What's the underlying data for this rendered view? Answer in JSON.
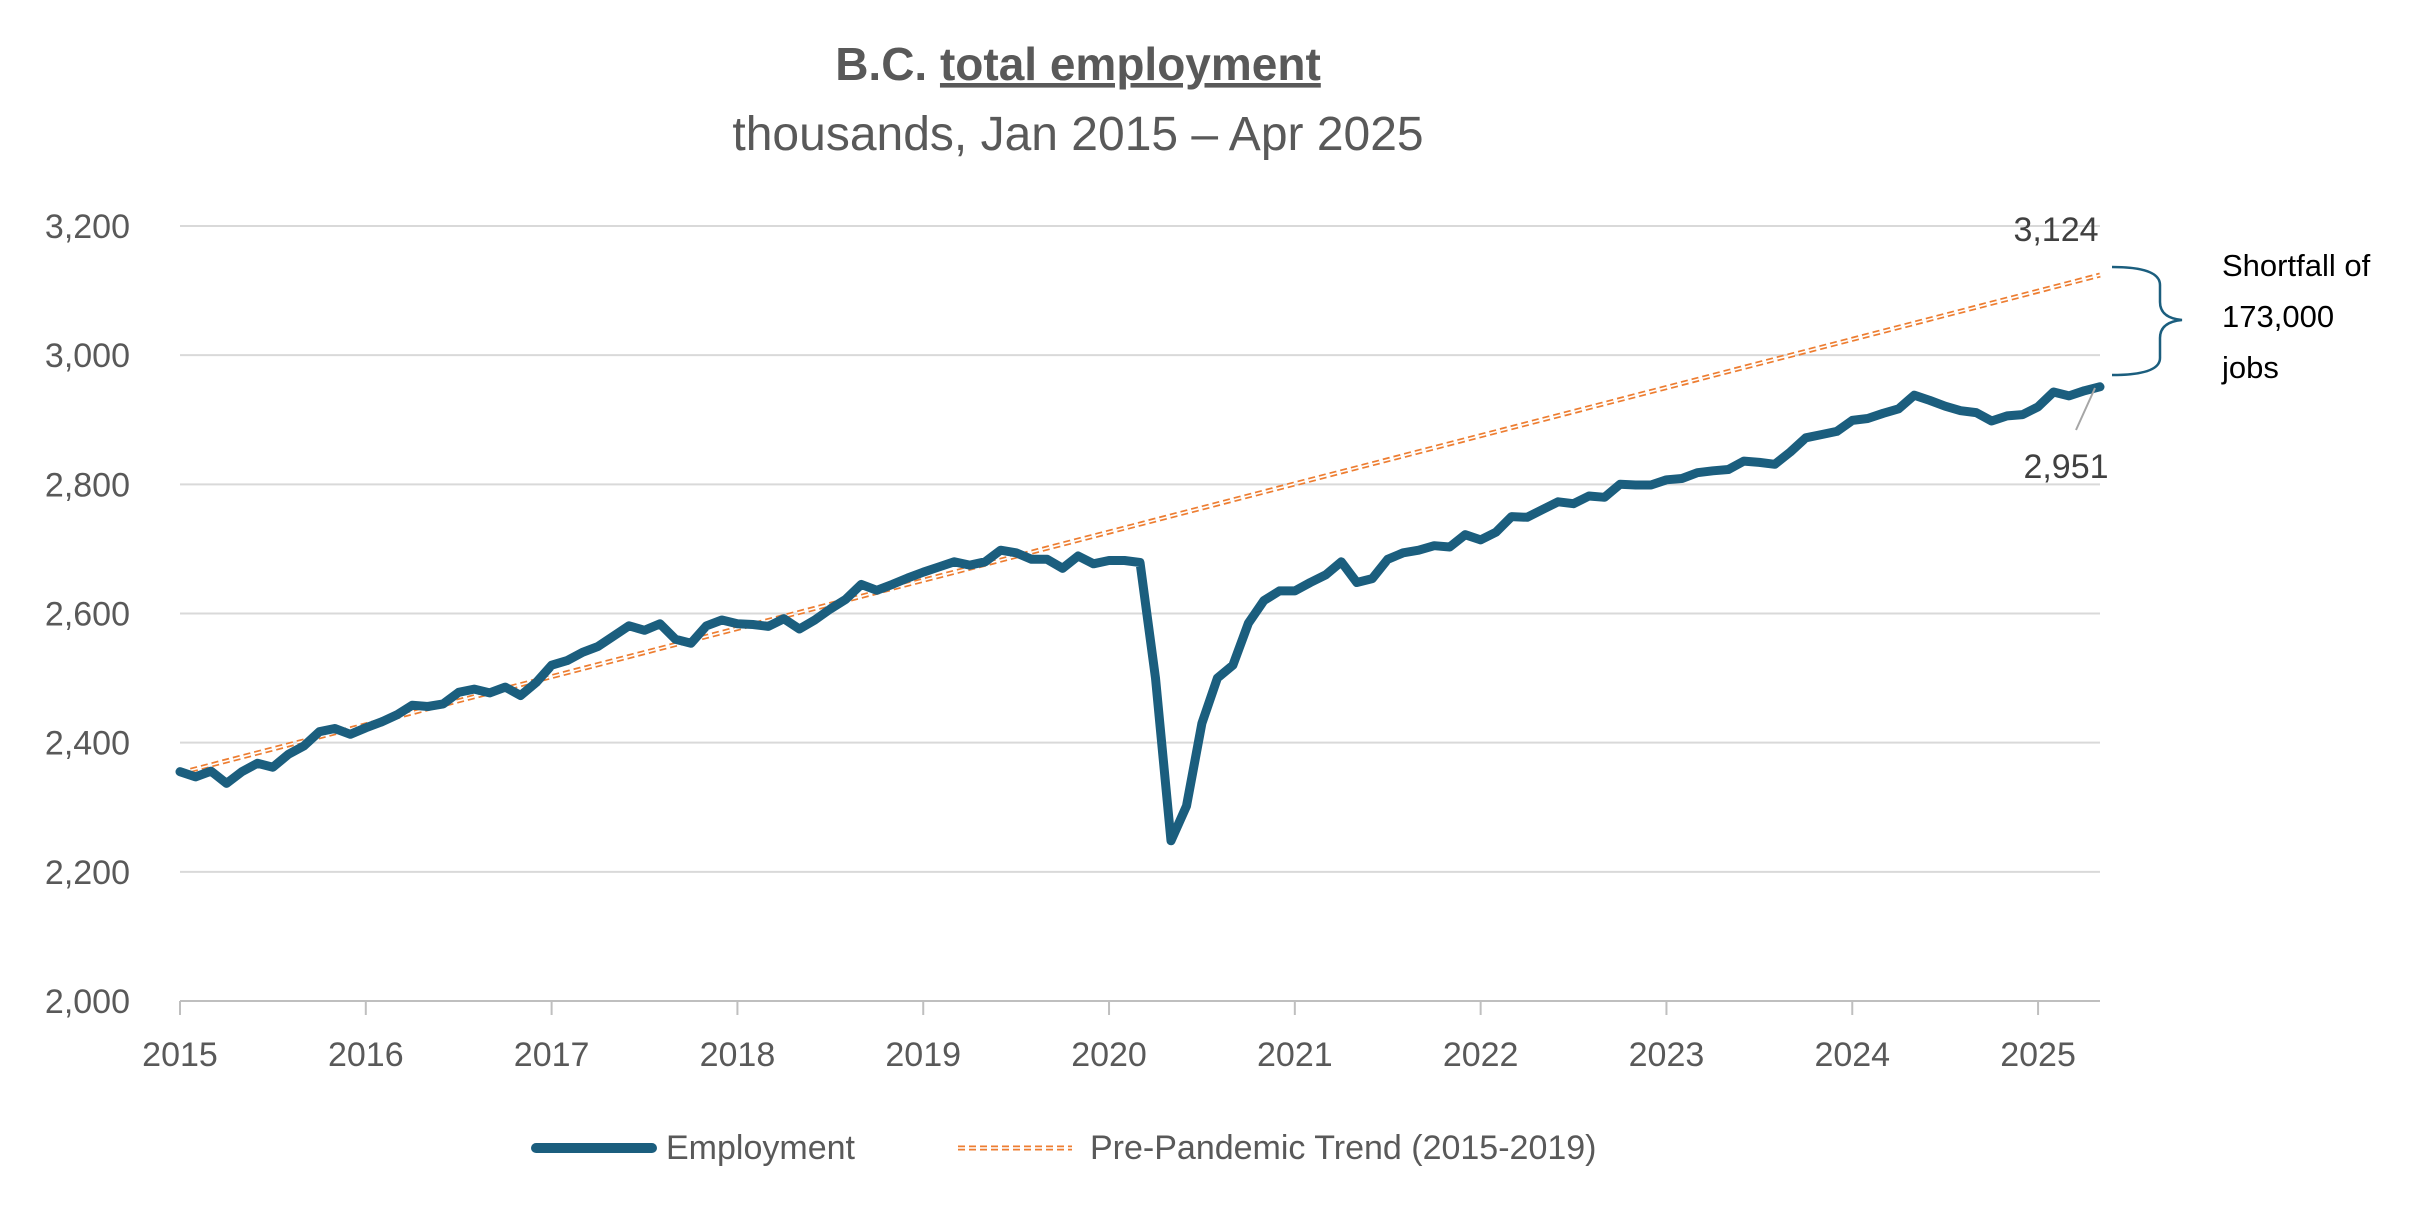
{
  "chart_data": {
    "type": "line",
    "title": "B.C. total employment",
    "title_prefix": "B.C. ",
    "title_underlined": "total employment",
    "subtitle": "thousands, Jan 2015 – Apr 2025",
    "xlabel": "",
    "ylabel": "",
    "ylim": [
      2000,
      3200
    ],
    "y_ticks": [
      "2,000",
      "2,200",
      "2,400",
      "2,600",
      "2,800",
      "3,000",
      "3,200"
    ],
    "y_tick_values": [
      2000,
      2200,
      2400,
      2600,
      2800,
      3000,
      3200
    ],
    "x_ticks": [
      "2015",
      "2016",
      "2017",
      "2018",
      "2019",
      "2020",
      "2021",
      "2022",
      "2023",
      "2024",
      "2025"
    ],
    "x_start": "Jan 2015",
    "x_end": "Apr 2025",
    "grid": true,
    "legend_position": "bottom",
    "series": [
      {
        "name": "Employment",
        "color": "#1b5e7e",
        "style": "solid",
        "values": [
          2355,
          2347,
          2356,
          2337,
          2355,
          2368,
          2362,
          2382,
          2395,
          2417,
          2422,
          2413,
          2423,
          2432,
          2443,
          2458,
          2456,
          2460,
          2478,
          2483,
          2477,
          2486,
          2473,
          2493,
          2520,
          2527,
          2540,
          2549,
          2565,
          2581,
          2574,
          2584,
          2560,
          2554,
          2581,
          2590,
          2584,
          2583,
          2580,
          2592,
          2576,
          2590,
          2607,
          2622,
          2645,
          2636,
          2645,
          2655,
          2664,
          2672,
          2680,
          2675,
          2680,
          2698,
          2694,
          2684,
          2684,
          2670,
          2689,
          2677,
          2682,
          2682,
          2679,
          2500,
          2248,
          2302,
          2430,
          2500,
          2520,
          2585,
          2620,
          2635,
          2635,
          2648,
          2660,
          2680,
          2648,
          2654,
          2684,
          2694,
          2698,
          2705,
          2703,
          2722,
          2714,
          2726,
          2750,
          2749,
          2761,
          2773,
          2770,
          2782,
          2780,
          2800,
          2799,
          2799,
          2807,
          2809,
          2818,
          2821,
          2823,
          2836,
          2834,
          2831,
          2850,
          2872,
          2877,
          2882,
          2899,
          2902,
          2910,
          2917,
          2938,
          2930,
          2921,
          2914,
          2911,
          2898,
          2906,
          2908,
          2920,
          2943,
          2937,
          2945,
          2951
        ]
      },
      {
        "name": "Pre-Pandemic Trend (2015-2019)",
        "color": "#ed7d31",
        "style": "dashed",
        "start_value": 2353,
        "end_value": 3124
      }
    ],
    "annotations": {
      "trend_end_label": "3,124",
      "employment_end_label": "2,951",
      "shortfall_lines": [
        "Shortfall of",
        "173,000",
        "jobs"
      ]
    }
  }
}
